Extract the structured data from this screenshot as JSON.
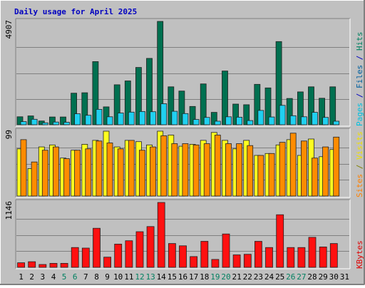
{
  "chart_data": {
    "type": "bar",
    "title": "Daily usage for April 2025",
    "categories": [
      "1",
      "2",
      "3",
      "4",
      "5",
      "6",
      "7",
      "8",
      "9",
      "10",
      "11",
      "12",
      "13",
      "14",
      "15",
      "16",
      "17",
      "18",
      "19",
      "20",
      "21",
      "22",
      "23",
      "24",
      "25",
      "26",
      "27",
      "28",
      "29",
      "30",
      "31"
    ],
    "weekend_days": [
      "5",
      "6",
      "12",
      "13",
      "19",
      "20",
      "26",
      "27"
    ],
    "panels": [
      {
        "id": "hits",
        "scale_label": "4907",
        "ymax": 4907,
        "side_label": [
          {
            "text": "Pages",
            "color": "#00c0e0"
          },
          {
            "text": " / ",
            "color": "#0000c0"
          },
          {
            "text": "Files",
            "color": "#0060a0"
          },
          {
            "text": " / ",
            "color": "#0000c0"
          },
          {
            "text": "Hits",
            "color": "#008060"
          }
        ],
        "series": [
          {
            "name": "Hits",
            "color": "#007050",
            "values": [
              380,
              420,
              180,
              370,
              370,
              1500,
              1520,
              3000,
              850,
              1900,
              2080,
              2720,
              3150,
              4907,
              1800,
              1600,
              870,
              1940,
              590,
              2550,
              980,
              950,
              1920,
              1750,
              3950,
              1250,
              1560,
              1800,
              1260,
              1800,
              0
            ]
          },
          {
            "name": "Pages",
            "color": "#20d0f0",
            "values": [
              150,
              260,
              90,
              130,
              120,
              520,
              450,
              730,
              380,
              560,
              600,
              630,
              620,
              1000,
              640,
              530,
              250,
              350,
              170,
              380,
              360,
              200,
              680,
              370,
              920,
              430,
              380,
              590,
              350,
              170,
              0
            ]
          }
        ]
      },
      {
        "id": "visits",
        "scale_label": "99",
        "ymax": 99,
        "side_label": [
          {
            "text": "Sites",
            "color": "#ff8000"
          },
          {
            "text": " / ",
            "color": "#808000"
          },
          {
            "text": "Visits",
            "color": "#f0e000"
          }
        ],
        "series": [
          {
            "name": "Visits",
            "color": "#ffff20",
            "values": [
              72,
              42,
              75,
              78,
              58,
              70,
              79,
              85,
              99,
              75,
              85,
              83,
              78,
              99,
              93,
              76,
              79,
              85,
              97,
              85,
              72,
              85,
              62,
              65,
              78,
              86,
              62,
              87,
              60,
              71,
              0
            ]
          },
          {
            "name": "Sites",
            "color": "#ff8c00",
            "values": [
              86,
              52,
              70,
              75,
              57,
              70,
              72,
              84,
              81,
              72,
              85,
              70,
              75,
              92,
              80,
              80,
              78,
              80,
              93,
              80,
              80,
              77,
              62,
              65,
              82,
              96,
              84,
              58,
              75,
              90,
              0
            ]
          }
        ]
      },
      {
        "id": "kbytes",
        "scale_label": "1146",
        "ymax": 1146,
        "side_label": [
          {
            "text": "KBytes",
            "color": "#e00000"
          }
        ],
        "series": [
          {
            "name": "KBytes",
            "color": "#ff1010",
            "values": [
              80,
              100,
              50,
              70,
              70,
              350,
              340,
              690,
              180,
              410,
              470,
              630,
              720,
              1146,
              420,
              380,
              190,
              460,
              140,
              590,
              220,
              230,
              460,
              350,
              930,
              350,
              350,
              530,
              360,
              420,
              0
            ]
          }
        ]
      }
    ]
  }
}
